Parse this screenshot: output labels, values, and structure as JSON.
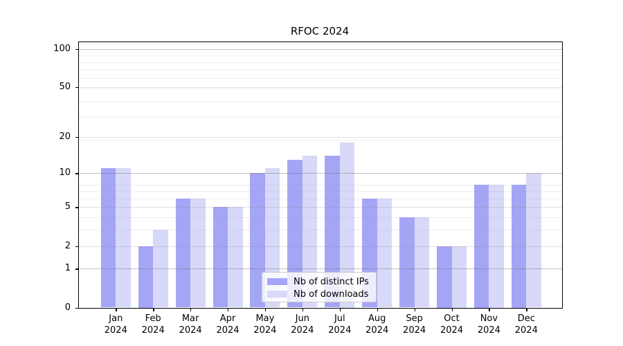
{
  "chart_data": {
    "type": "bar",
    "title": "RFOC 2024",
    "categories": [
      {
        "month": "Jan",
        "year": "2024"
      },
      {
        "month": "Feb",
        "year": "2024"
      },
      {
        "month": "Mar",
        "year": "2024"
      },
      {
        "month": "Apr",
        "year": "2024"
      },
      {
        "month": "May",
        "year": "2024"
      },
      {
        "month": "Jun",
        "year": "2024"
      },
      {
        "month": "Jul",
        "year": "2024"
      },
      {
        "month": "Aug",
        "year": "2024"
      },
      {
        "month": "Sep",
        "year": "2024"
      },
      {
        "month": "Oct",
        "year": "2024"
      },
      {
        "month": "Nov",
        "year": "2024"
      },
      {
        "month": "Dec",
        "year": "2024"
      }
    ],
    "series": [
      {
        "name": "Nb of distinct IPs",
        "color": "#a5a5f6",
        "values": [
          11,
          2,
          6,
          5,
          10,
          13,
          14,
          6,
          4,
          2,
          8,
          8
        ]
      },
      {
        "name": "Nb of downloads",
        "color": "#d8d8f9",
        "values": [
          11,
          3,
          6,
          5,
          11,
          14,
          18,
          6,
          4,
          2,
          8,
          10
        ]
      }
    ],
    "y_scale": "log10(value+1)",
    "y_ticks": [
      0,
      1,
      2,
      5,
      10,
      20,
      50,
      100
    ],
    "ylim": [
      0,
      113
    ],
    "grid": "horizontal",
    "grid_values": {
      "major": [
        1,
        10,
        100
      ],
      "mid": [
        2,
        5,
        20,
        50
      ],
      "minor": [
        3,
        4,
        6,
        7,
        8,
        19,
        29,
        39,
        49,
        59,
        69,
        79,
        89
      ]
    },
    "legend_position": "lower center"
  }
}
